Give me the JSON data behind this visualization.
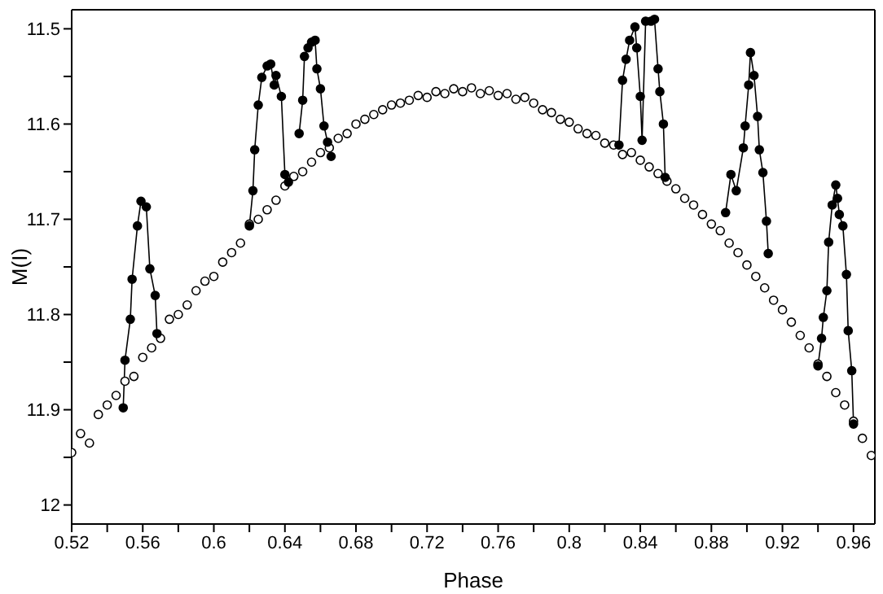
{
  "chart_data": {
    "type": "scatter",
    "xlabel": "Phase",
    "ylabel": "M(I)",
    "xlim": [
      0.52,
      0.972
    ],
    "xticks": [
      0.52,
      {
        "value": 0.54,
        "label": null
      },
      0.56,
      {
        "value": 0.58,
        "label": null
      },
      0.6,
      {
        "value": 0.62,
        "label": null
      },
      0.64,
      {
        "value": 0.66,
        "label": null
      },
      0.68,
      {
        "value": 0.7,
        "label": null
      },
      0.72,
      {
        "value": 0.74,
        "label": null
      },
      0.76,
      {
        "value": 0.78,
        "label": null
      },
      0.8,
      {
        "value": 0.82,
        "label": null
      },
      0.84,
      {
        "value": 0.86,
        "label": null
      },
      0.88,
      {
        "value": 0.9,
        "label": null
      },
      0.92,
      {
        "value": 0.94,
        "label": null
      },
      0.96
    ],
    "ylim": [
      12.02,
      11.48
    ],
    "yticks": [
      11.5,
      {
        "value": 11.55,
        "label": null
      },
      11.6,
      {
        "value": 11.65,
        "label": null
      },
      11.7,
      {
        "value": 11.75,
        "label": null
      },
      11.8,
      {
        "value": 11.85,
        "label": null
      },
      11.9,
      {
        "value": 11.95,
        "label": null
      },
      12.0
    ],
    "series": [
      {
        "marker": "circle",
        "color": "#000000",
        "x": [
          0.52,
          0.525,
          0.53,
          0.535,
          0.54,
          0.545,
          0.55,
          0.555,
          0.56,
          0.565,
          0.57,
          0.575,
          0.58,
          0.585,
          0.59,
          0.595,
          0.6,
          0.605,
          0.61,
          0.615,
          0.62,
          0.625,
          0.63,
          0.635,
          0.64,
          0.645,
          0.65,
          0.655,
          0.66,
          0.665,
          0.67,
          0.675,
          0.68,
          0.685,
          0.69,
          0.695,
          0.7,
          0.705,
          0.71,
          0.715,
          0.72,
          0.725,
          0.73,
          0.735,
          0.74,
          0.745,
          0.75,
          0.755,
          0.76,
          0.765,
          0.77,
          0.775,
          0.78,
          0.785,
          0.79,
          0.795,
          0.8,
          0.805,
          0.81,
          0.815,
          0.82,
          0.825,
          0.83,
          0.835,
          0.84,
          0.845,
          0.85,
          0.855,
          0.86,
          0.865,
          0.87,
          0.875,
          0.88,
          0.885,
          0.89,
          0.895,
          0.9,
          0.905,
          0.91,
          0.915,
          0.92,
          0.925,
          0.93,
          0.935,
          0.94,
          0.945,
          0.95,
          0.955,
          0.96,
          0.965,
          0.97
        ],
        "values": [
          11.945,
          11.925,
          11.935,
          11.905,
          11.895,
          11.885,
          11.87,
          11.865,
          11.845,
          11.835,
          11.825,
          11.805,
          11.8,
          11.79,
          11.775,
          11.765,
          11.76,
          11.745,
          11.735,
          11.725,
          11.705,
          11.7,
          11.69,
          11.68,
          11.665,
          11.655,
          11.65,
          11.64,
          11.63,
          11.625,
          11.615,
          11.61,
          11.6,
          11.595,
          11.59,
          11.585,
          11.58,
          11.578,
          11.575,
          11.57,
          11.572,
          11.566,
          11.568,
          11.563,
          11.566,
          11.562,
          11.568,
          11.565,
          11.57,
          11.568,
          11.574,
          11.572,
          11.578,
          11.585,
          11.588,
          11.595,
          11.598,
          11.605,
          11.61,
          11.612,
          11.62,
          11.622,
          11.632,
          11.63,
          11.638,
          11.645,
          11.652,
          11.66,
          11.668,
          11.678,
          11.685,
          11.695,
          11.705,
          11.712,
          11.725,
          11.735,
          11.748,
          11.76,
          11.772,
          11.785,
          11.795,
          11.808,
          11.822,
          11.835,
          11.852,
          11.865,
          11.882,
          11.895,
          11.912,
          11.93,
          11.948
        ]
      },
      {
        "type": "line",
        "marker": "circle",
        "line_style": "solid",
        "color": "#000000",
        "x": [
          0.549,
          0.55,
          0.553,
          0.554,
          0.557,
          0.559,
          0.562,
          0.564,
          0.567,
          0.568,
          0.594,
          0.62,
          0.622,
          0.623,
          0.625,
          0.627,
          0.63,
          0.632,
          0.634,
          0.635,
          0.638,
          0.64,
          0.642,
          0.645,
          0.648,
          0.65,
          0.651,
          0.653,
          0.655,
          0.657,
          0.658,
          0.66,
          0.662,
          0.664,
          0.666,
          0.75,
          0.828,
          0.83,
          0.832,
          0.834,
          0.837,
          0.838,
          0.84,
          0.841,
          0.843,
          0.846,
          0.848,
          0.85,
          0.851,
          0.853,
          0.854,
          0.87,
          0.888,
          0.891,
          0.894,
          0.898,
          0.899,
          0.901,
          0.902,
          0.904,
          0.906,
          0.907,
          0.909,
          0.911,
          0.912,
          0.925,
          0.94,
          0.942,
          0.943,
          0.945,
          0.946,
          0.948,
          0.95,
          0.951,
          0.952,
          0.954,
          0.956,
          0.957,
          0.959,
          0.96
        ],
        "values": [
          11.898,
          11.848,
          11.805,
          11.763,
          11.707,
          11.681,
          11.687,
          11.752,
          11.78,
          11.82,
          null,
          11.707,
          11.67,
          11.627,
          11.58,
          11.551,
          11.539,
          11.537,
          11.559,
          11.549,
          11.571,
          11.653,
          11.661,
          null,
          11.61,
          11.575,
          11.529,
          11.52,
          11.514,
          11.512,
          11.542,
          11.563,
          11.602,
          11.619,
          11.634,
          null,
          11.622,
          11.554,
          11.532,
          11.512,
          11.498,
          11.52,
          11.571,
          11.617,
          11.492,
          11.492,
          11.49,
          11.542,
          11.566,
          11.6,
          11.656,
          null,
          11.693,
          11.653,
          11.67,
          11.625,
          11.602,
          11.559,
          11.525,
          11.549,
          11.592,
          11.627,
          11.651,
          11.702,
          11.736,
          null,
          11.854,
          11.825,
          11.803,
          11.775,
          11.724,
          11.685,
          11.664,
          11.678,
          11.695,
          11.707,
          11.758,
          11.817,
          11.859,
          11.915
        ]
      }
    ]
  }
}
